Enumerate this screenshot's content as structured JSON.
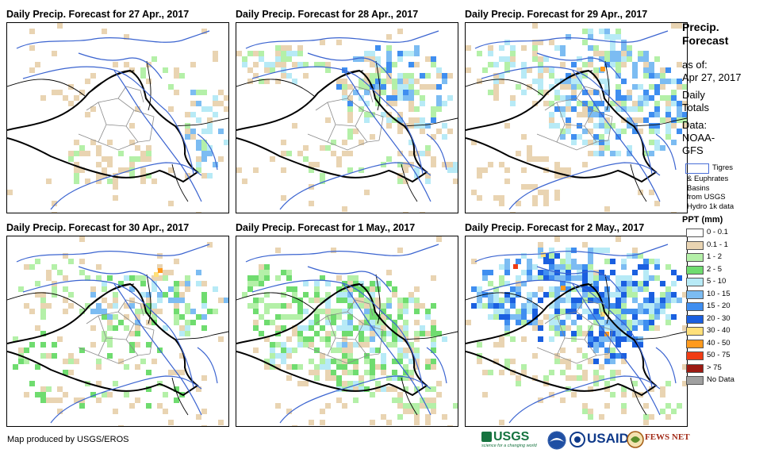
{
  "panels": [
    {
      "title": "Daily Precip. Forecast for 27 Apr., 2017",
      "pattern": "light"
    },
    {
      "title": "Daily Precip. Forecast for 28 Apr., 2017",
      "pattern": "northeast"
    },
    {
      "title": "Daily Precip. Forecast for 29 Apr., 2017",
      "pattern": "northeast_strong"
    },
    {
      "title": "Daily Precip. Forecast for 30 Apr., 2017",
      "pattern": "scattered"
    },
    {
      "title": "Daily Precip. Forecast for 1 May., 2017",
      "pattern": "central_green"
    },
    {
      "title": "Daily Precip. Forecast for 2 May., 2017",
      "pattern": "heavy_north"
    }
  ],
  "sidebar": {
    "heading_line1": "Precip.",
    "heading_line2": "Forecast",
    "asof_label": "as of:",
    "asof_date": "Apr 27, 2017",
    "totals_line1": "Daily",
    "totals_line2": "Totals",
    "data_label": "Data:",
    "data_source1": "NOAA-",
    "data_source2": "GFS",
    "basin_line1": "Tigres",
    "basin_line2": "& Euphrates",
    "basin_line3": "Basins",
    "basin_line4": "from USGS",
    "basin_line5": "Hydro 1k data"
  },
  "legend": {
    "title": "PPT (mm)",
    "items": [
      {
        "label": "0 - 0.1",
        "color": "#ffffff"
      },
      {
        "label": "0.1 - 1",
        "color": "#e9d4b2"
      },
      {
        "label": "1 - 2",
        "color": "#b4f0a8"
      },
      {
        "label": "2 - 5",
        "color": "#6fdc6f"
      },
      {
        "label": "5 - 10",
        "color": "#b7eaf6"
      },
      {
        "label": "10 - 15",
        "color": "#7cbcf2"
      },
      {
        "label": "15 - 20",
        "color": "#3f8ef0"
      },
      {
        "label": "20 - 30",
        "color": "#1a5fe0"
      },
      {
        "label": "30 - 40",
        "color": "#ffe07a"
      },
      {
        "label": "40 - 50",
        "color": "#ff9a1e"
      },
      {
        "label": "50 - 75",
        "color": "#f03c14"
      },
      {
        "label": "> 75",
        "color": "#9c1a12"
      },
      {
        "label": "No Data",
        "color": "#a0a0a0"
      }
    ]
  },
  "footer": {
    "credit": "Map produced by USGS/EROS",
    "logo_usgs": "USGS",
    "logo_usgs_tagline": "science for a changing world",
    "logo_usaid": "USAID",
    "logo_fews": "FEWS NET"
  },
  "colors": {
    "river": "#3b64d0",
    "border": "#000000",
    "admin": "#8a8a8a"
  }
}
